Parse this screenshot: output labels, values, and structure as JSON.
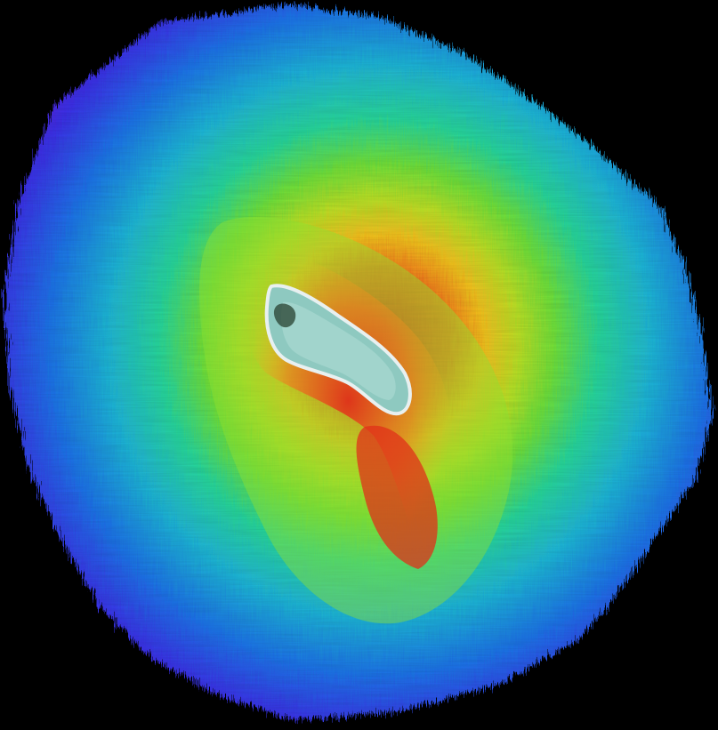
{
  "map": {
    "background_color": "#000000",
    "colormap": [
      "#1f0a33",
      "#6a1fd6",
      "#3b2fe6",
      "#1f6fe8",
      "#1fb6d6",
      "#28d69a",
      "#6fe03a",
      "#b8e026",
      "#f2c21f",
      "#f07a1f",
      "#e0301a"
    ],
    "island_color": "#8ec9c0",
    "island_border_color": "#e8f0f0"
  }
}
